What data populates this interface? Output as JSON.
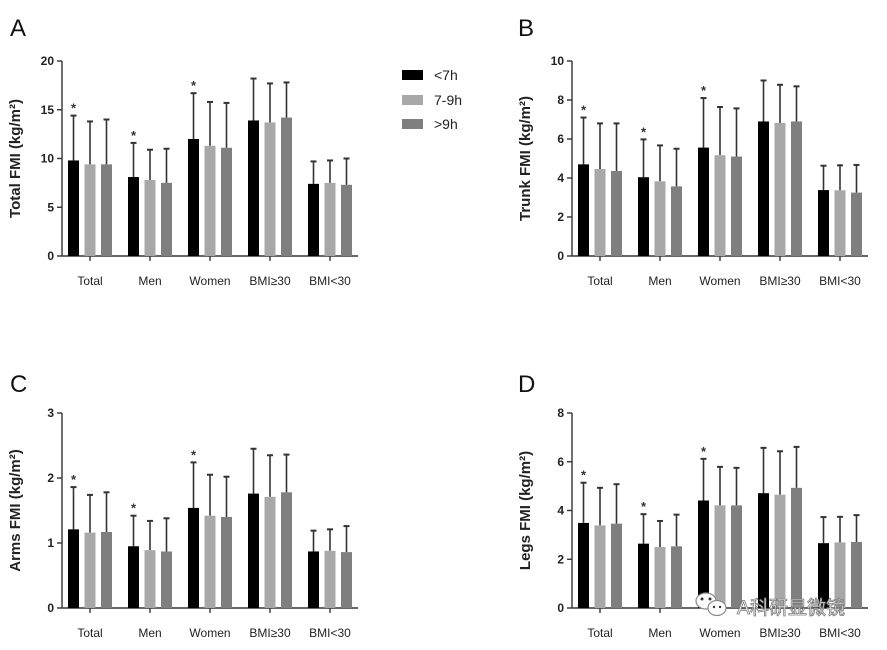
{
  "legend": {
    "items": [
      {
        "label": "<7h",
        "color": "#000000"
      },
      {
        "label": "7-9h",
        "color": "#a8a8a8"
      },
      {
        "label": ">9h",
        "color": "#7f7f7f"
      }
    ]
  },
  "watermark": {
    "text": "A科研显微镜",
    "icon": "wechat-icon"
  },
  "chart_data": [
    {
      "panel": "A",
      "type": "bar",
      "ylabel": "Total FMI (kg/m²)",
      "ylim": [
        0,
        20
      ],
      "yticks": [
        "0",
        "5",
        "10",
        "15",
        "20"
      ],
      "categories": [
        "Total",
        "Men",
        "Women",
        "BMI≥30",
        "BMI<30"
      ],
      "series": [
        {
          "name": "<7h",
          "values": [
            9.8,
            8.1,
            12.0,
            13.9,
            7.4
          ],
          "error_upper": [
            14.4,
            11.6,
            16.7,
            18.2,
            9.7
          ]
        },
        {
          "name": "7-9h",
          "values": [
            9.4,
            7.8,
            11.3,
            13.7,
            7.5
          ],
          "error_upper": [
            13.8,
            10.9,
            15.8,
            17.7,
            9.8
          ]
        },
        {
          "name": ">9h",
          "values": [
            9.4,
            7.5,
            11.1,
            14.2,
            7.3
          ],
          "error_upper": [
            14.0,
            11.0,
            15.7,
            17.8,
            10.0
          ]
        }
      ],
      "significance": [
        true,
        true,
        true,
        false,
        false
      ]
    },
    {
      "panel": "B",
      "type": "bar",
      "ylabel": "Trunk FMI (kg/m²)",
      "ylim": [
        0,
        10
      ],
      "yticks": [
        "0",
        "2",
        "4",
        "6",
        "8",
        "10"
      ],
      "categories": [
        "Total",
        "Men",
        "Women",
        "BMI≥30",
        "BMI<30"
      ],
      "series": [
        {
          "name": "<7h",
          "values": [
            4.7,
            4.04,
            5.56,
            6.9,
            3.38
          ],
          "error_upper": [
            7.1,
            5.98,
            8.1,
            9.0,
            4.63
          ]
        },
        {
          "name": "7-9h",
          "values": [
            4.46,
            3.83,
            5.17,
            6.82,
            3.37
          ],
          "error_upper": [
            6.8,
            5.67,
            7.64,
            8.78,
            4.65
          ]
        },
        {
          "name": ">9h",
          "values": [
            4.36,
            3.57,
            5.1,
            6.9,
            3.25
          ],
          "error_upper": [
            6.8,
            5.5,
            7.57,
            8.7,
            4.67
          ]
        }
      ],
      "significance": [
        true,
        true,
        true,
        false,
        false
      ]
    },
    {
      "panel": "C",
      "type": "bar",
      "ylabel": "Arms FMI (kg/m²)",
      "ylim": [
        0,
        3
      ],
      "yticks": [
        "0",
        "1",
        "2",
        "3"
      ],
      "categories": [
        "Total",
        "Men",
        "Women",
        "BMI≥30",
        "BMI<30"
      ],
      "series": [
        {
          "name": "<7h",
          "values": [
            1.21,
            0.95,
            1.54,
            1.76,
            0.87
          ],
          "error_upper": [
            1.86,
            1.42,
            2.24,
            2.45,
            1.19
          ]
        },
        {
          "name": "7-9h",
          "values": [
            1.16,
            0.89,
            1.42,
            1.71,
            0.88
          ],
          "error_upper": [
            1.74,
            1.34,
            2.05,
            2.35,
            1.21
          ]
        },
        {
          "name": ">9h",
          "values": [
            1.17,
            0.87,
            1.4,
            1.78,
            0.86
          ],
          "error_upper": [
            1.78,
            1.38,
            2.02,
            2.36,
            1.26
          ]
        }
      ],
      "significance": [
        true,
        true,
        true,
        false,
        false
      ]
    },
    {
      "panel": "D",
      "type": "bar",
      "ylabel": "Legs FMI (kg/m²)",
      "ylim": [
        0,
        8
      ],
      "yticks": [
        "0",
        "2",
        "4",
        "6",
        "8"
      ],
      "categories": [
        "Total",
        "Men",
        "Women",
        "BMI≥30",
        "BMI<30"
      ],
      "series": [
        {
          "name": "<7h",
          "values": [
            3.49,
            2.64,
            4.41,
            4.71,
            2.66
          ],
          "error_upper": [
            5.14,
            3.85,
            6.12,
            6.57,
            3.73
          ]
        },
        {
          "name": "7-9h",
          "values": [
            3.39,
            2.5,
            4.21,
            4.65,
            2.69
          ],
          "error_upper": [
            4.93,
            3.57,
            5.79,
            6.43,
            3.74
          ]
        },
        {
          "name": ">9h",
          "values": [
            3.46,
            2.53,
            4.21,
            4.93,
            2.71
          ],
          "error_upper": [
            5.08,
            3.83,
            5.75,
            6.61,
            3.81
          ]
        }
      ],
      "significance": [
        true,
        true,
        true,
        false,
        false
      ]
    }
  ],
  "significance_marker": "*"
}
